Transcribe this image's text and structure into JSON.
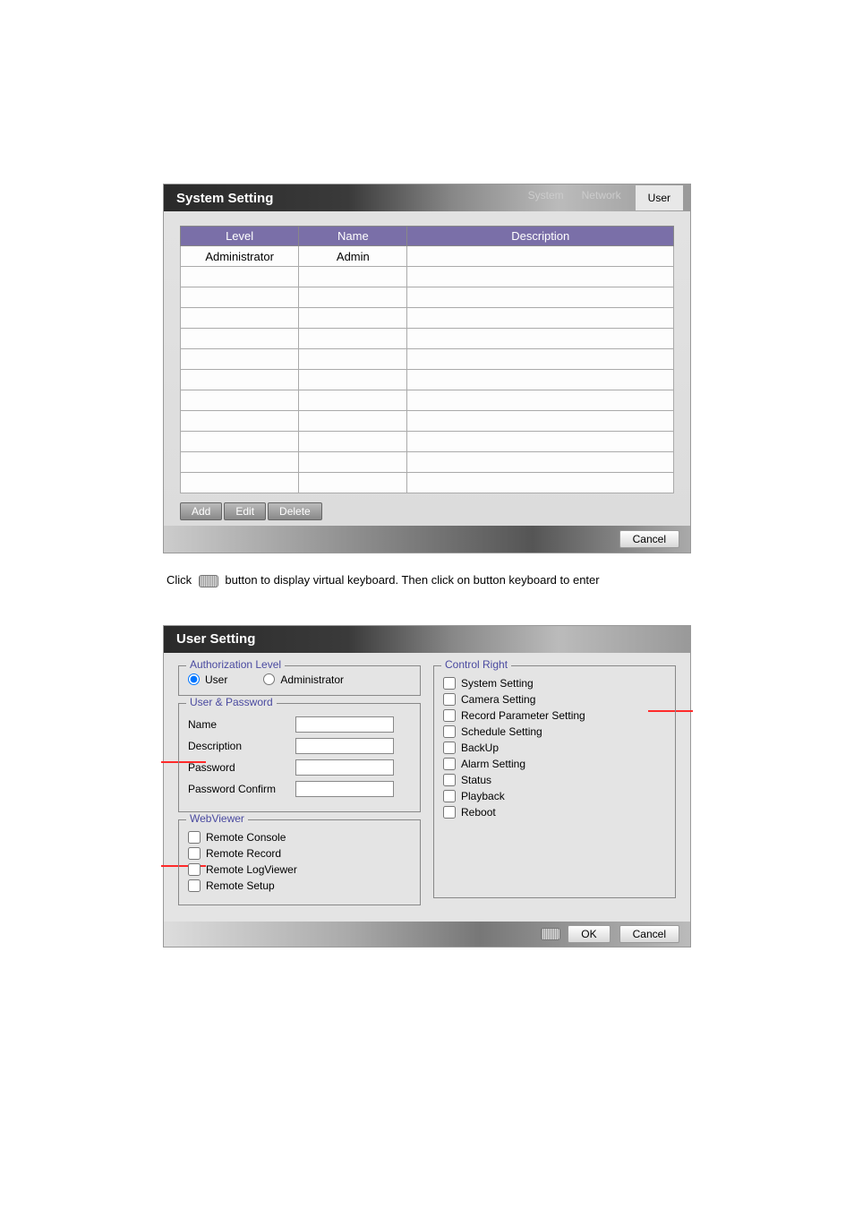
{
  "dialog1": {
    "title": "System Setting",
    "tabs": {
      "system": "System",
      "network": "Network",
      "user": "User"
    },
    "table": {
      "headers": {
        "level": "Level",
        "name": "Name",
        "description": "Description"
      },
      "rows": [
        {
          "level": "Administrator",
          "name": "Admin",
          "description": ""
        }
      ],
      "blank_rows": 11
    },
    "buttons": {
      "add": "Add",
      "edit": "Edit",
      "delete": "Delete",
      "cancel": "Cancel"
    }
  },
  "intertext": {
    "line_parts": [
      "Click",
      "button to display virtual keyboard. Then click on button keyboard to enter"
    ]
  },
  "dialog2": {
    "title": "User Setting",
    "auth": {
      "legend": "Authorization Level",
      "user": "User",
      "admin": "Administrator",
      "selected": "user"
    },
    "userpw": {
      "legend": "User & Password",
      "name": "Name",
      "description": "Description",
      "password": "Password",
      "password_confirm": "Password Confirm"
    },
    "webviewer": {
      "legend": "WebViewer",
      "items": [
        "Remote Console",
        "Remote Record",
        "Remote LogViewer",
        "Remote Setup"
      ]
    },
    "control": {
      "legend": "Control Right",
      "items": [
        "System Setting",
        "Camera Setting",
        "Record Parameter Setting",
        "Schedule Setting",
        "BackUp",
        "Alarm Setting",
        "Status",
        "Playback",
        "Reboot"
      ]
    },
    "buttons": {
      "ok": "OK",
      "cancel": "Cancel"
    }
  }
}
